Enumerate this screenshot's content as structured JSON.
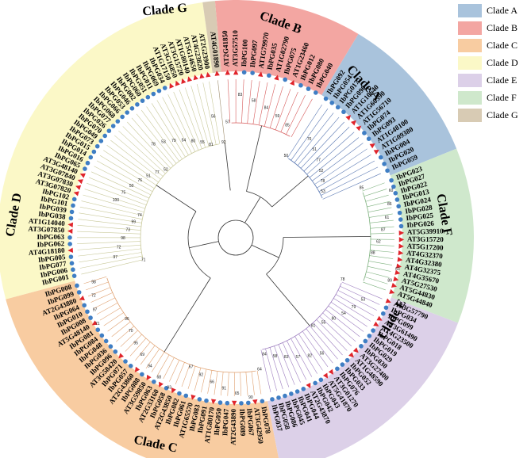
{
  "figure": {
    "type": "circular-phylogenetic-tree",
    "legend": [
      {
        "label": "Clade A",
        "color": "#a9c3dc"
      },
      {
        "label": "Clade B",
        "color": "#f3a6a2"
      },
      {
        "label": "Clade C",
        "color": "#f8cca1"
      },
      {
        "label": "Clade D",
        "color": "#fbf8c7"
      },
      {
        "label": "Clade E",
        "color": "#dcd0e8"
      },
      {
        "label": "Clade F",
        "color": "#cfe8cc"
      },
      {
        "label": "Clade G",
        "color": "#d8cbb4"
      }
    ],
    "clades": [
      {
        "label": "Clade A",
        "color": "#a9c3dc",
        "branch_color": "#5b79b3",
        "leaves": [
          "IbPG092",
          "IbPG054",
          "IbPG017",
          "IbPG090",
          "AT1G10640",
          "AT1G60590",
          "AT1G56710",
          "IbPG074",
          "IbPG093",
          "AT1G48100",
          "AT1G09380",
          "IbPG004",
          "IbPG020",
          "IbPG059"
        ]
      },
      {
        "label": "Clade B",
        "color": "#f3a6a2",
        "branch_color": "#d65b5b",
        "leaves": [
          "AT2G41850",
          "AT3G57510",
          "IbPG100",
          "IbPG097",
          "AT1G79970",
          "IbPG035",
          "AT1G02790",
          "IbPG075",
          "AT1G23460",
          "IbPG012",
          "IbPG080",
          "IbPG040"
        ]
      },
      {
        "label": "Clade C",
        "color": "#f8cca1",
        "branch_color": "#e0a170",
        "leaves": [
          "IbPG078",
          "AT3G42950",
          "IbPG067",
          "IbPG089",
          "AT2G43890",
          "IbPG047",
          "IbPG050",
          "AT1G80170",
          "IbPG091",
          "IbPG083",
          "AT1G65570",
          "IbPG061",
          "IbPG082",
          "AT2G43850",
          "IbPG058",
          "AT2G33160",
          "IbPG063",
          "AT3G59850",
          "IbPG088",
          "AT2G43860",
          "IbPG057",
          "IbPG071",
          "AT3G58420",
          "IbPG096",
          "IbPG036",
          "IbPG048",
          "IbPG084",
          "IbPG081",
          "AT5G48140",
          "IbPG008",
          "IbPG010",
          "IbPG064",
          "AT2G43880",
          "IbPG099",
          "IbPG008"
        ]
      },
      {
        "label": "Clade D",
        "color": "#fbf8c7",
        "branch_color": "#c9c99a",
        "leaves": [
          "IbPG001",
          "IbPG006",
          "IbPG077",
          "IbPG005",
          "AT4G18180",
          "IbPG062",
          "IbPG063",
          "AT3G07850",
          "AT1G14040",
          "IbPG038",
          "IbPG039",
          "IbPG101",
          "IbPG102",
          "AT3G07820",
          "AT3G07830",
          "AT3G07840",
          "AT3G48140",
          "IbPG065",
          "IbPG016",
          "IbPG014",
          "IbPG015",
          "IbPG073",
          "IbPG049",
          "IbPG070",
          "IbPG026",
          "IbPG077",
          "IbPG068",
          "IbPG066",
          "IbPG053",
          "IbPG046",
          "IbPG002",
          "IbPG060",
          "IbPG051",
          "IbPG011",
          "IbPG069",
          "IbPG034",
          "AT1G17150",
          "AT3G16850",
          "AT3G15720",
          "AT1G80140",
          "AT5G14650",
          "AT4G23820",
          "AT2G23900"
        ]
      },
      {
        "label": "Clade E",
        "color": "#dcd0e8",
        "branch_color": "#9e7fc0",
        "leaves": [
          "AT3G57790",
          "IbPG034",
          "IbPG099",
          "AT3G61490",
          "AT4G23500",
          "IbPG018",
          "IbPG019",
          "IbPG029",
          "IbPG030",
          "AT3G27400",
          "AT1G48590",
          "IbPG052",
          "IbPG033",
          "IbPG076",
          "AT3G01270",
          "AT5G41870",
          "IbPG043",
          "IbPG042",
          "AT2G43870",
          "IbPG044",
          "IbPG041",
          "IbPG045",
          "IbPG086",
          "IbPG058",
          "IbPG037"
        ]
      },
      {
        "label": "Clade F",
        "color": "#cfe8cc",
        "branch_color": "#7fb27f",
        "leaves": [
          "IbPG023",
          "IbPG027",
          "IbPG022",
          "IbPG013",
          "IbPG024",
          "IbPG028",
          "IbPG025",
          "IbPG026",
          "AT5G39910",
          "AT3G15720",
          "AT5G17200",
          "AT4G32370",
          "AT4G32380",
          "AT4G32375",
          "AT4G35670",
          "AT5G27530",
          "AT5G44830",
          "AT5G44840"
        ]
      },
      {
        "label": "Clade G",
        "color": "#d8cbb4",
        "branch_color": "#a08f70",
        "leaves": [
          "AT4G01890"
        ]
      }
    ]
  }
}
